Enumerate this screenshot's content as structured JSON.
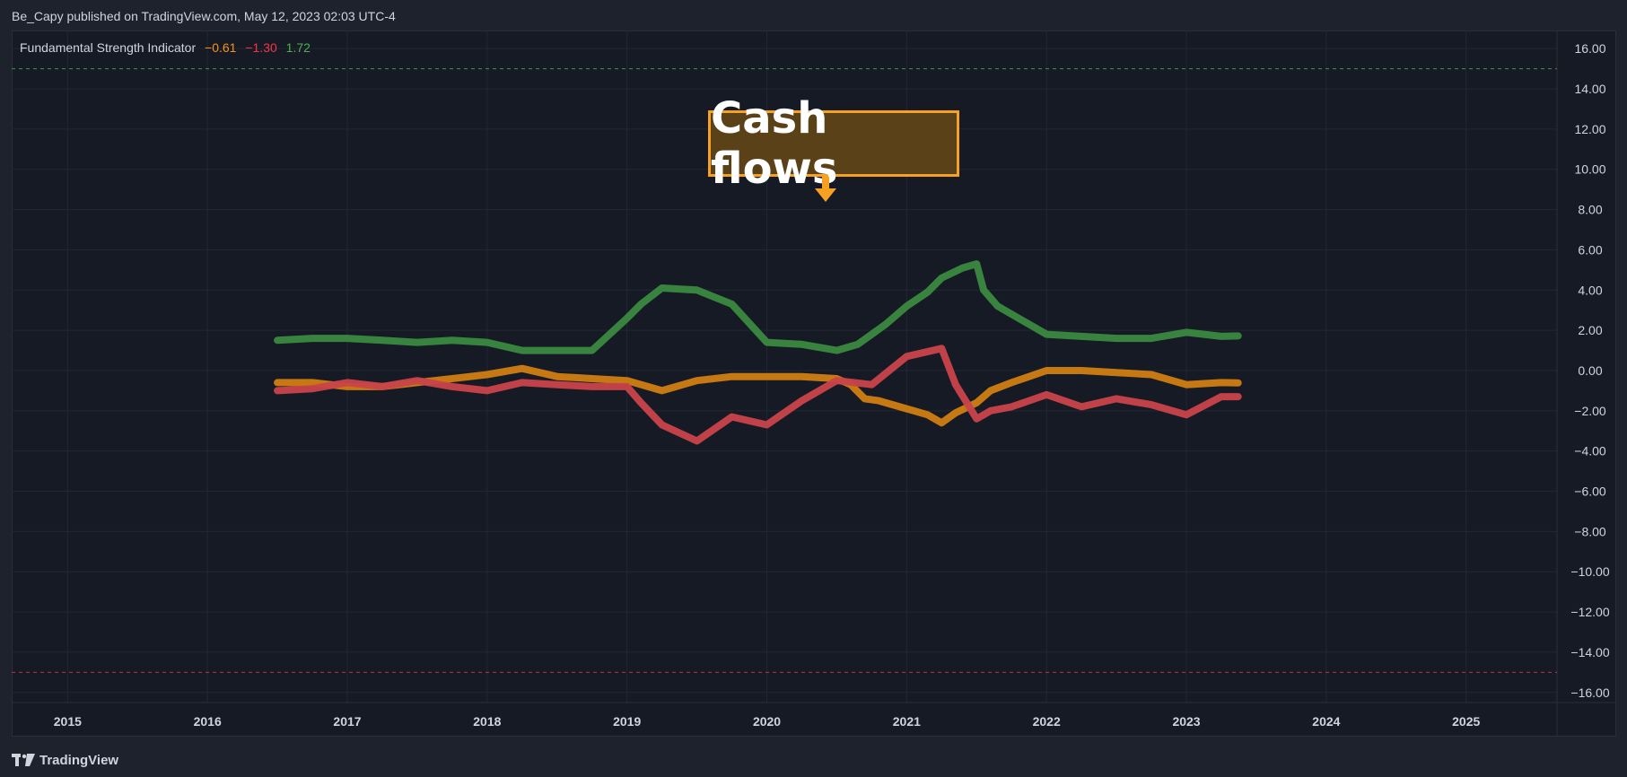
{
  "header": {
    "published_text": "Be_Capy published on TradingView.com, May 12, 2023 02:03 UTC-4"
  },
  "legend": {
    "indicator_name": "Fundamental Strength Indicator",
    "values": [
      {
        "text": "−0.61",
        "color": "#f7931a"
      },
      {
        "text": "−1.30",
        "color": "#f23645"
      },
      {
        "text": "1.72",
        "color": "#4caf50"
      }
    ]
  },
  "annotation": {
    "label": "Cash flows",
    "arrow_icon": "arrow-down-icon"
  },
  "footer": {
    "brand": "TradingView",
    "logo_icon": "tradingview-logo-icon"
  },
  "chart_data": {
    "type": "line",
    "xlim": [
      2014.6,
      2025.65
    ],
    "ylim": [
      -16.5,
      16.9
    ],
    "x_ticks": [
      2015,
      2016,
      2017,
      2018,
      2019,
      2020,
      2021,
      2022,
      2023,
      2024,
      2025
    ],
    "x_tick_labels": [
      "2015",
      "2016",
      "2017",
      "2018",
      "2019",
      "2020",
      "2021",
      "2022",
      "2023",
      "2024",
      "2025"
    ],
    "y_ticks": [
      16,
      14,
      12,
      10,
      8,
      6,
      4,
      2,
      0,
      -2,
      -4,
      -6,
      -8,
      -10,
      -12,
      -14,
      -16
    ],
    "y_tick_labels": [
      "16.00",
      "14.00",
      "12.00",
      "10.00",
      "8.00",
      "6.00",
      "4.00",
      "2.00",
      "0.00",
      "−2.00",
      "−4.00",
      "−6.00",
      "−8.00",
      "−10.00",
      "−12.00",
      "−14.00",
      "−16.00"
    ],
    "grid": true,
    "reference_lines": [
      {
        "y": 15,
        "color": "#4caf50"
      },
      {
        "y": -15,
        "color": "#f23645"
      }
    ],
    "series": [
      {
        "color": "#3a8a40",
        "points": [
          [
            2016.5,
            1.5
          ],
          [
            2016.75,
            1.6
          ],
          [
            2017.0,
            1.6
          ],
          [
            2017.25,
            1.5
          ],
          [
            2017.5,
            1.4
          ],
          [
            2017.75,
            1.5
          ],
          [
            2018.0,
            1.4
          ],
          [
            2018.25,
            1.0
          ],
          [
            2018.5,
            1.0
          ],
          [
            2018.75,
            1.0
          ],
          [
            2019.0,
            2.6
          ],
          [
            2019.1,
            3.3
          ],
          [
            2019.25,
            4.1
          ],
          [
            2019.5,
            4.0
          ],
          [
            2019.75,
            3.3
          ],
          [
            2020.0,
            1.4
          ],
          [
            2020.25,
            1.3
          ],
          [
            2020.5,
            1.0
          ],
          [
            2020.65,
            1.3
          ],
          [
            2020.75,
            1.8
          ],
          [
            2020.85,
            2.3
          ],
          [
            2021.0,
            3.2
          ],
          [
            2021.15,
            3.9
          ],
          [
            2021.25,
            4.6
          ],
          [
            2021.4,
            5.1
          ],
          [
            2021.5,
            5.3
          ],
          [
            2021.55,
            4.0
          ],
          [
            2021.65,
            3.2
          ],
          [
            2021.8,
            2.6
          ],
          [
            2022.0,
            1.8
          ],
          [
            2022.25,
            1.7
          ],
          [
            2022.5,
            1.6
          ],
          [
            2022.75,
            1.6
          ],
          [
            2023.0,
            1.9
          ],
          [
            2023.25,
            1.7
          ],
          [
            2023.37,
            1.72
          ]
        ]
      },
      {
        "color": "#d07e12",
        "points": [
          [
            2016.5,
            -0.6
          ],
          [
            2016.75,
            -0.6
          ],
          [
            2017.0,
            -0.8
          ],
          [
            2017.25,
            -0.8
          ],
          [
            2017.5,
            -0.6
          ],
          [
            2017.75,
            -0.4
          ],
          [
            2018.0,
            -0.2
          ],
          [
            2018.25,
            0.1
          ],
          [
            2018.5,
            -0.3
          ],
          [
            2018.75,
            -0.4
          ],
          [
            2019.0,
            -0.5
          ],
          [
            2019.25,
            -1.0
          ],
          [
            2019.5,
            -0.5
          ],
          [
            2019.75,
            -0.3
          ],
          [
            2020.0,
            -0.3
          ],
          [
            2020.25,
            -0.3
          ],
          [
            2020.5,
            -0.4
          ],
          [
            2020.6,
            -0.7
          ],
          [
            2020.7,
            -1.4
          ],
          [
            2020.8,
            -1.5
          ],
          [
            2021.0,
            -1.9
          ],
          [
            2021.15,
            -2.2
          ],
          [
            2021.25,
            -2.6
          ],
          [
            2021.35,
            -2.1
          ],
          [
            2021.5,
            -1.6
          ],
          [
            2021.6,
            -1.0
          ],
          [
            2021.75,
            -0.6
          ],
          [
            2022.0,
            0.0
          ],
          [
            2022.25,
            0.0
          ],
          [
            2022.5,
            -0.1
          ],
          [
            2022.75,
            -0.2
          ],
          [
            2023.0,
            -0.7
          ],
          [
            2023.25,
            -0.6
          ],
          [
            2023.37,
            -0.61
          ]
        ]
      },
      {
        "color": "#c9434a",
        "points": [
          [
            2016.5,
            -1.0
          ],
          [
            2016.75,
            -0.9
          ],
          [
            2017.0,
            -0.6
          ],
          [
            2017.25,
            -0.8
          ],
          [
            2017.5,
            -0.5
          ],
          [
            2017.75,
            -0.8
          ],
          [
            2018.0,
            -1.0
          ],
          [
            2018.25,
            -0.6
          ],
          [
            2018.5,
            -0.7
          ],
          [
            2018.75,
            -0.8
          ],
          [
            2019.0,
            -0.8
          ],
          [
            2019.1,
            -1.6
          ],
          [
            2019.25,
            -2.7
          ],
          [
            2019.5,
            -3.5
          ],
          [
            2019.75,
            -2.3
          ],
          [
            2020.0,
            -2.7
          ],
          [
            2020.25,
            -1.5
          ],
          [
            2020.5,
            -0.5
          ],
          [
            2020.75,
            -0.7
          ],
          [
            2021.0,
            0.7
          ],
          [
            2021.25,
            1.1
          ],
          [
            2021.35,
            -0.7
          ],
          [
            2021.5,
            -2.4
          ],
          [
            2021.6,
            -2.0
          ],
          [
            2021.75,
            -1.8
          ],
          [
            2022.0,
            -1.2
          ],
          [
            2022.25,
            -1.8
          ],
          [
            2022.5,
            -1.4
          ],
          [
            2022.75,
            -1.7
          ],
          [
            2023.0,
            -2.2
          ],
          [
            2023.25,
            -1.3
          ],
          [
            2023.37,
            -1.3
          ]
        ]
      }
    ]
  }
}
